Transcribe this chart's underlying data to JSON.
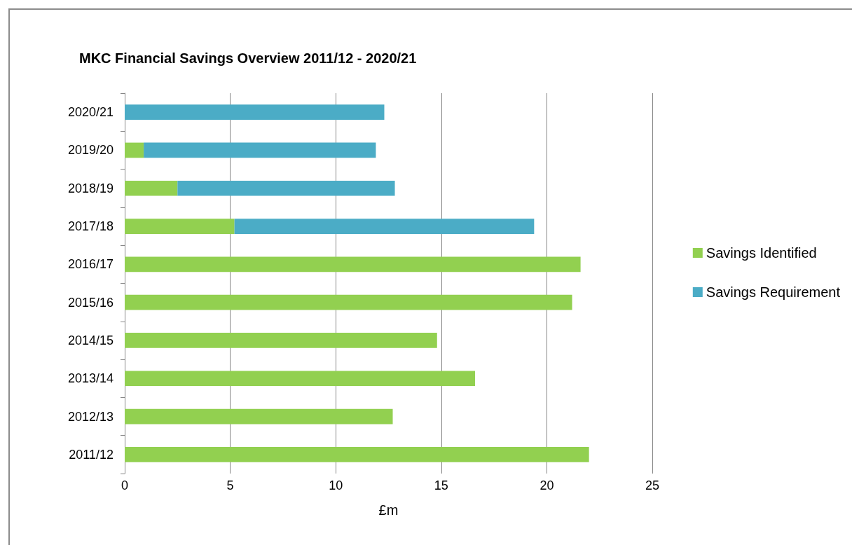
{
  "chart_data": {
    "type": "bar",
    "orientation": "horizontal",
    "stacked": true,
    "title": "MKC Financial Savings Overview 2011/12 - 2020/21",
    "xlabel": "£m",
    "categories": [
      "2020/21",
      "2019/20",
      "2018/19",
      "2017/18",
      "2016/17",
      "2015/16",
      "2014/15",
      "2013/14",
      "2012/13",
      "2011/12"
    ],
    "series": [
      {
        "name": "Savings Identified",
        "color": "#92d050",
        "values": [
          0,
          0.9,
          2.5,
          5.2,
          21.6,
          21.2,
          14.8,
          16.6,
          12.7,
          22.0
        ]
      },
      {
        "name": "Savings Requirement",
        "color": "#4bacc6",
        "values": [
          12.3,
          11.0,
          10.3,
          14.2,
          null,
          null,
          null,
          null,
          null,
          null
        ]
      }
    ],
    "xlim": [
      0,
      25
    ],
    "xticks": [
      0,
      5,
      10,
      15,
      20,
      25
    ],
    "grid": "x",
    "legend": "right"
  }
}
